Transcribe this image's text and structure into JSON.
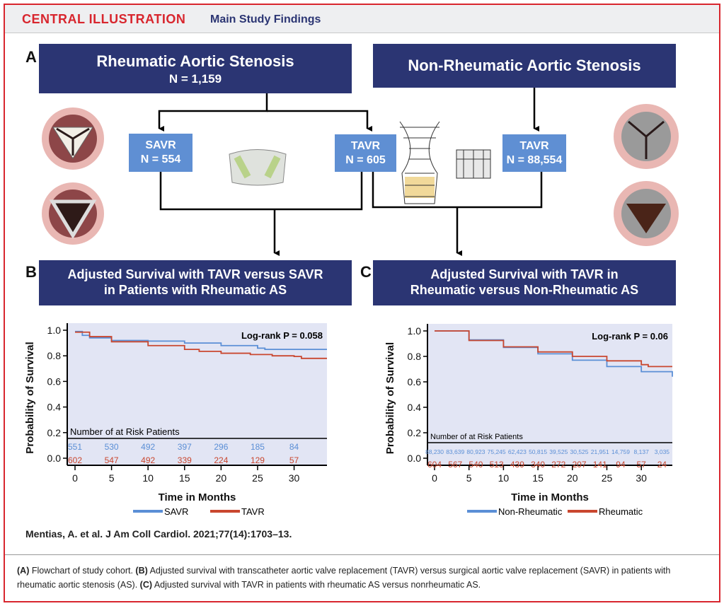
{
  "header": {
    "label": "CENTRAL ILLUSTRATION",
    "title": "Main Study Findings"
  },
  "panelA": {
    "letter": "A",
    "rheumatic": {
      "title": "Rheumatic Aortic Stenosis",
      "n": "N = 1,159"
    },
    "nonrheumatic": {
      "title": "Non-Rheumatic Aortic Stenosis"
    },
    "savr": {
      "label": "SAVR",
      "n": "N = 554"
    },
    "tavr_rheum": {
      "label": "TAVR",
      "n": "N = 605"
    },
    "tavr_nonrheum": {
      "label": "TAVR",
      "n": "N = 88,554"
    }
  },
  "panelB": {
    "letter": "B",
    "title": "Adjusted Survival with TAVR versus SAVR in Patients with Rheumatic AS"
  },
  "panelC": {
    "letter": "C",
    "title": "Adjusted Survival with TAVR in Rheumatic versus Non-Rheumatic AS"
  },
  "colors": {
    "blue": "#5b8fd6",
    "red": "#c9472f",
    "navy": "#2b3573"
  },
  "chart_data": [
    {
      "type": "line",
      "xlabel": "Time in Months",
      "ylabel": "Probability of Survival",
      "xlim": [
        0,
        34.5
      ],
      "ylim": [
        0,
        1
      ],
      "xticks": [
        0,
        5,
        10,
        15,
        20,
        25,
        30
      ],
      "yticks": [
        "0.0",
        "0.2",
        "0.4",
        "0.6",
        "0.8",
        "1.0"
      ],
      "annotation": "Log-rank P = 0.058",
      "risk_title": "Number of at Risk Patients",
      "risk_times": [
        0,
        5,
        10,
        15,
        20,
        25,
        30
      ],
      "series": [
        {
          "name": "SAVR",
          "color": "#5b8fd6",
          "x": [
            0,
            1,
            2,
            5,
            10,
            15,
            20,
            25,
            26,
            34.5
          ],
          "y": [
            0.99,
            0.96,
            0.94,
            0.92,
            0.915,
            0.9,
            0.88,
            0.86,
            0.85,
            0.85
          ],
          "at_risk": [
            "551",
            "530",
            "492",
            "397",
            "296",
            "185",
            "84"
          ]
        },
        {
          "name": "TAVR",
          "color": "#c9472f",
          "x": [
            0,
            2,
            5,
            10,
            15,
            17,
            20,
            24,
            27,
            30,
            31,
            34.5
          ],
          "y": [
            0.985,
            0.95,
            0.91,
            0.88,
            0.85,
            0.835,
            0.82,
            0.81,
            0.8,
            0.795,
            0.78,
            0.78
          ],
          "at_risk": [
            "602",
            "547",
            "492",
            "339",
            "224",
            "129",
            "57"
          ]
        }
      ]
    },
    {
      "type": "line",
      "xlabel": "Time in Months",
      "ylabel": "Probability of Survival",
      "xlim": [
        0,
        34.5
      ],
      "ylim": [
        0,
        1
      ],
      "xticks": [
        0,
        5,
        10,
        15,
        20,
        25,
        30
      ],
      "yticks": [
        "0.0",
        "0.2",
        "0.4",
        "0.6",
        "0.8",
        "1.0"
      ],
      "annotation": "Log-rank P = 0.06",
      "risk_title": "Number of at Risk Patients",
      "risk_times": [
        0,
        3,
        6,
        9,
        12,
        15,
        18,
        21,
        24,
        27,
        30,
        33
      ],
      "series": [
        {
          "name": "Non-Rheumatic",
          "color": "#5b8fd6",
          "x": [
            0,
            5,
            10,
            15,
            20,
            25,
            30,
            34.5
          ],
          "y": [
            1.0,
            0.93,
            0.87,
            0.82,
            0.77,
            0.72,
            0.68,
            0.64
          ],
          "at_risk": [
            "88,230",
            "83,639",
            "80,923",
            "75,245",
            "62,423",
            "50,815",
            "39,525",
            "30,525",
            "21,951",
            "14,759",
            "8,137",
            "3,035"
          ]
        },
        {
          "name": "Rheumatic",
          "color": "#c9472f",
          "x": [
            0,
            5,
            10,
            15,
            20,
            25,
            30,
            31,
            34.5
          ],
          "y": [
            1.0,
            0.925,
            0.875,
            0.835,
            0.8,
            0.765,
            0.735,
            0.72,
            0.72
          ],
          "at_risk": [
            "604",
            "567",
            "540",
            "513",
            "439",
            "340",
            "272",
            "207",
            "141",
            "94",
            "57",
            "24"
          ]
        }
      ]
    }
  ],
  "citation": "Mentias, A. et al. J Am Coll Cardiol. 2021;77(14):1703–13.",
  "caption": [
    {
      "tag": "(A)",
      "text": " Flowchart of study cohort. "
    },
    {
      "tag": "(B)",
      "text": " Adjusted survival with transcatheter aortic valve replacement (TAVR) versus surgical aortic valve replacement (SAVR) in patients with rheumatic aortic stenosis (AS). "
    },
    {
      "tag": "(C)",
      "text": " Adjusted survival with TAVR in patients with rheumatic AS versus nonrheumatic AS."
    }
  ]
}
